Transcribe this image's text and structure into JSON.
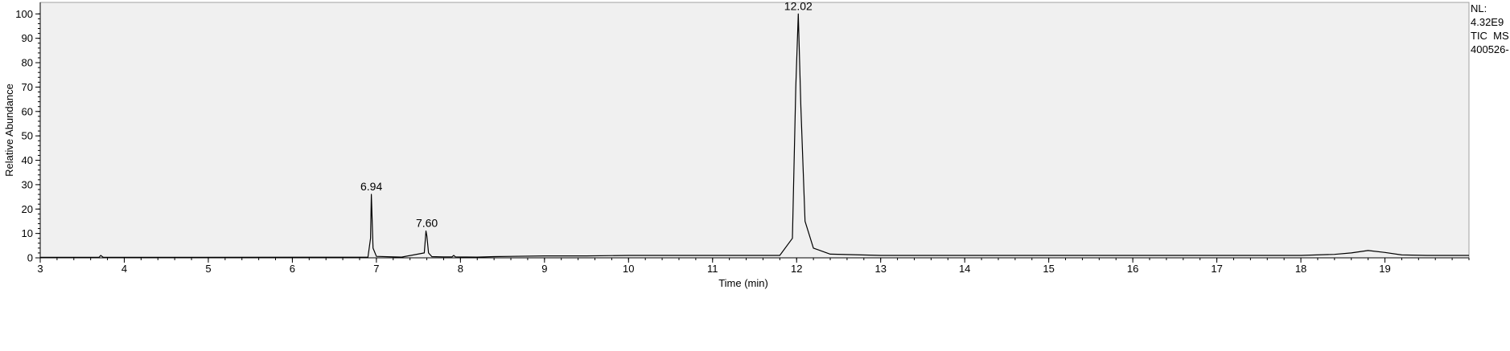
{
  "info": {
    "nl_label": "NL:",
    "nl_value": "4.32E9",
    "trace_type": "TIC  MS",
    "file_name": "400526-"
  },
  "chart_data": {
    "type": "line",
    "title": "",
    "xlabel": "Time (min)",
    "ylabel": "Relative Abundance",
    "xlim": [
      3.0,
      20.0
    ],
    "ylim": [
      0,
      100
    ],
    "x_ticks": [
      3,
      4,
      5,
      6,
      7,
      8,
      9,
      10,
      11,
      12,
      13,
      14,
      15,
      16,
      17,
      18,
      19
    ],
    "y_ticks": [
      0,
      10,
      20,
      30,
      40,
      50,
      60,
      70,
      80,
      90,
      100
    ],
    "grid": false,
    "series": [
      {
        "x": [
          3.0,
          3.7,
          3.72,
          3.75,
          3.8,
          6.9,
          6.93,
          6.94,
          6.96,
          7.0,
          7.3,
          7.57,
          7.59,
          7.6,
          7.62,
          7.66,
          7.8,
          7.9,
          7.92,
          7.94,
          8.2,
          8.4,
          9.0,
          9.5,
          10.0,
          11.0,
          11.8,
          11.95,
          11.99,
          12.02,
          12.05,
          12.1,
          12.2,
          12.4,
          13.0,
          15.0,
          17.0,
          18.0,
          18.4,
          18.6,
          18.8,
          19.0,
          19.2,
          19.5,
          20.0
        ],
        "y": [
          0.2,
          0.2,
          1.0,
          0.2,
          0.2,
          0.3,
          8.0,
          26.0,
          4.0,
          0.6,
          0.3,
          2.0,
          11.0,
          9.0,
          2.0,
          0.5,
          0.4,
          0.4,
          1.0,
          0.4,
          0.3,
          0.5,
          0.8,
          0.8,
          1.0,
          1.0,
          1.0,
          8.0,
          70.0,
          100.0,
          62.0,
          15.0,
          4.0,
          1.5,
          1.0,
          1.0,
          1.0,
          1.0,
          1.4,
          2.0,
          3.0,
          2.2,
          1.2,
          1.0,
          1.0
        ]
      }
    ],
    "peaks": [
      {
        "x": 6.94,
        "y": 26.0,
        "label": "6.94"
      },
      {
        "x": 7.6,
        "y": 11.0,
        "label": "7.60"
      },
      {
        "x": 12.02,
        "y": 100.0,
        "label": "12.02"
      }
    ]
  }
}
